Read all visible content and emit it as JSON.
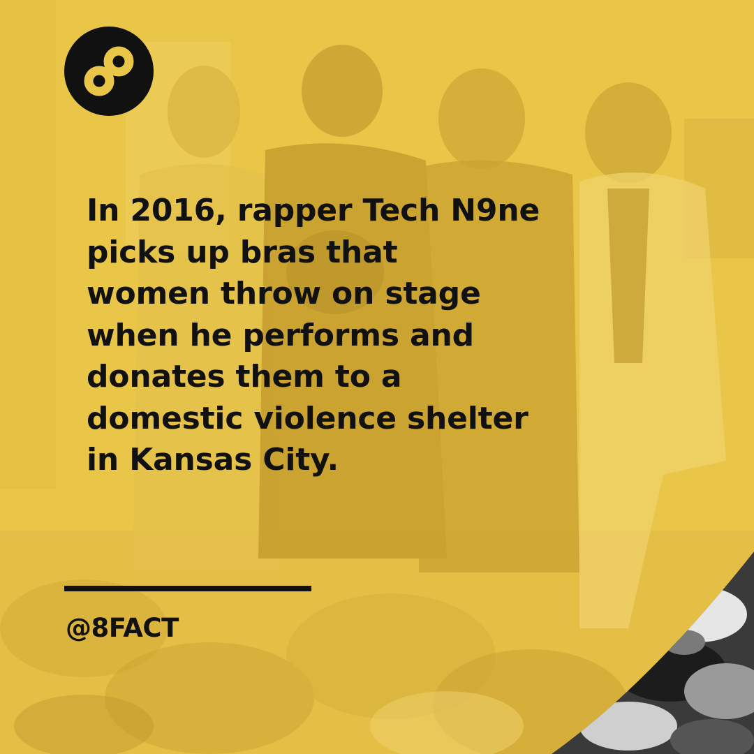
{
  "brand": {
    "logo_icon": "infinity-eight-icon",
    "handle": "@8FACT"
  },
  "fact": {
    "lines": [
      "In 2016, rapper Tech N9ne",
      "picks up bras that",
      "women throw on stage",
      "when he performs and",
      "donates them to a",
      "domestic violence shelter",
      "in Kansas City."
    ]
  },
  "colors": {
    "background": "#e9c548",
    "text": "#111111",
    "logo_circle": "#111111",
    "logo_mark": "#e9c548"
  }
}
